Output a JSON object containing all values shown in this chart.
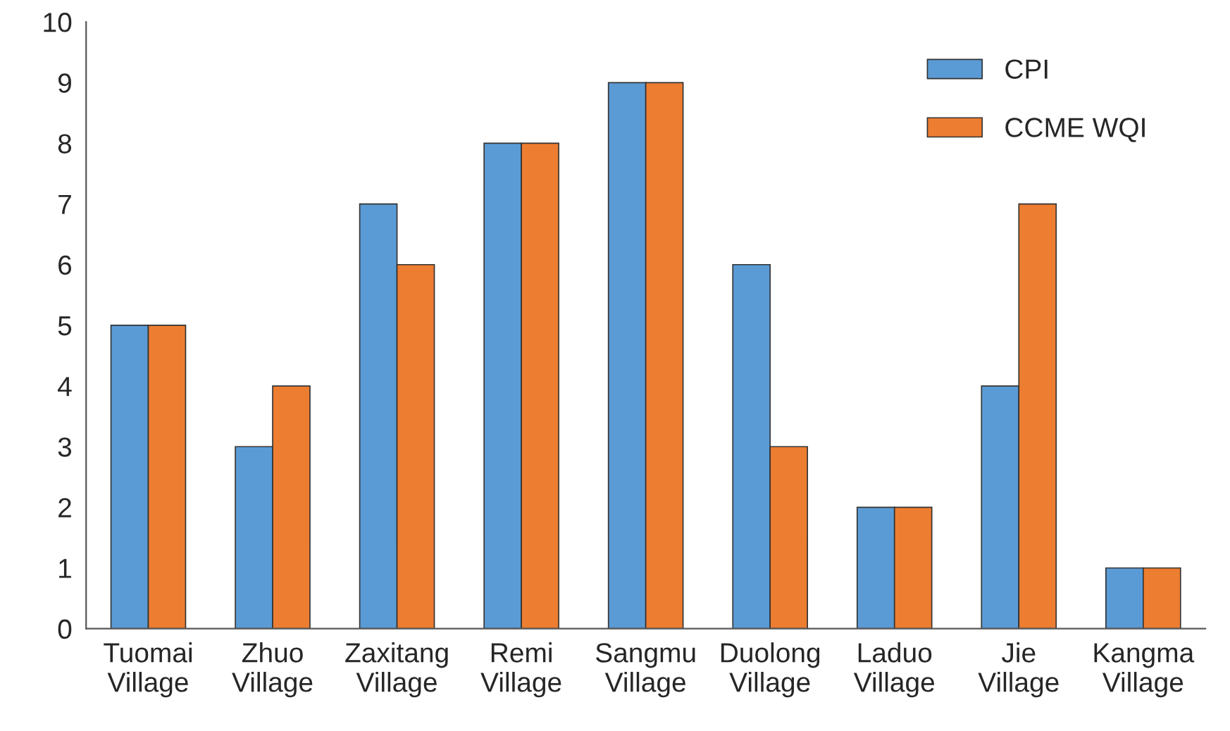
{
  "chart_data": {
    "type": "bar",
    "categories": [
      "Tuomai Village",
      "Zhuo Village",
      "Zaxitang Village",
      "Remi Village",
      "Sangmu Village",
      "Duolong Village",
      "Laduo Village",
      "Jie Village",
      "Kangma Village"
    ],
    "series": [
      {
        "name": "CPI",
        "color": "#5b9bd5",
        "values": [
          5,
          3,
          7,
          8,
          9,
          6,
          2,
          4,
          1
        ]
      },
      {
        "name": "CCME WQI",
        "color": "#ed7d31",
        "values": [
          5,
          4,
          6,
          8,
          9,
          3,
          2,
          7,
          1
        ]
      }
    ],
    "ylim": [
      0,
      10
    ],
    "yticks": [
      0,
      1,
      2,
      3,
      4,
      5,
      6,
      7,
      8,
      9,
      10
    ],
    "grid": false,
    "legend": "top right"
  }
}
